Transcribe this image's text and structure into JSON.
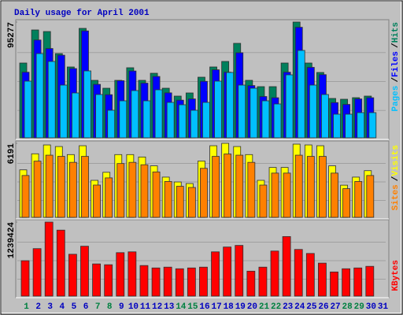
{
  "chart_data": [
    {
      "type": "bar",
      "title": "Daily usage for April 2001",
      "title_color": "#0000c0",
      "legend_separator": "/",
      "ylim": [
        0,
        95277
      ],
      "yticks": [
        95277
      ],
      "series": [
        {
          "name": "Hits",
          "color": "#00805c",
          "values": [
            61560,
            88776,
            87480,
            69336,
            58320,
            90072,
            47304,
            40824,
            47304,
            57672,
            47304,
            53136,
            40824,
            34344,
            36936,
            49896,
            58320,
            62856,
            77760,
            47304,
            42120,
            42120,
            61560,
            95277,
            61560,
            53784,
            32400,
            31752,
            33048,
            34344,
            null
          ]
        },
        {
          "name": "Files",
          "color": "#0000ff",
          "values": [
            54000,
            80500,
            73500,
            68000,
            57000,
            88000,
            44000,
            35500,
            47000,
            55000,
            45000,
            50500,
            37000,
            31000,
            32000,
            46500,
            56000,
            54000,
            70000,
            43000,
            34000,
            33000,
            54000,
            91000,
            58000,
            52000,
            29000,
            27500,
            32000,
            33000,
            null
          ]
        },
        {
          "name": "Pages",
          "color": "#00c0ff",
          "values": [
            46650,
            69336,
            62856,
            43416,
            36936,
            55080,
            35640,
            22680,
            30456,
            38880,
            30456,
            39528,
            29160,
            27216,
            22680,
            29160,
            46656,
            53784,
            43416,
            40824,
            30456,
            27864,
            51840,
            71928,
            43416,
            35640,
            19440,
            19440,
            20736,
            20736,
            null
          ]
        }
      ]
    },
    {
      "type": "bar",
      "legend_separator": "/",
      "ylim": [
        0,
        6191
      ],
      "yticks": [
        6191
      ],
      "series": [
        {
          "name": "Visits",
          "color": "#ffff00",
          "values": [
            3971,
            5317,
            6057,
            5923,
            5250,
            5990,
            3096,
            3769,
            5250,
            5250,
            5048,
            4307,
            3365,
            2961,
            2827,
            4711,
            5990,
            6191,
            5923,
            5250,
            3096,
            4173,
            4173,
            6124,
            6057,
            5990,
            4307,
            2692,
            3365,
            3904,
            null
          ]
        },
        {
          "name": "Sites",
          "color": "#ff8000",
          "values": [
            3500,
            4700,
            5200,
            5100,
            4600,
            5100,
            2700,
            3300,
            4500,
            4600,
            4400,
            3800,
            3000,
            2600,
            2500,
            4100,
            5100,
            5300,
            5200,
            4600,
            2700,
            3700,
            3700,
            5200,
            5100,
            5100,
            3700,
            2400,
            3000,
            3500,
            null
          ]
        }
      ]
    },
    {
      "type": "bar",
      "ylim": [
        0,
        1239424
      ],
      "yticks": [
        1239424
      ],
      "categories": [
        "1",
        "2",
        "3",
        "4",
        "5",
        "6",
        "7",
        "8",
        "9",
        "10",
        "11",
        "12",
        "13",
        "14",
        "15",
        "16",
        "17",
        "18",
        "19",
        "20",
        "21",
        "22",
        "23",
        "24",
        "25",
        "26",
        "27",
        "28",
        "29",
        "30",
        "31"
      ],
      "category_colors": [
        "#008040",
        "#0000c0",
        "#0000c0",
        "#0000c0",
        "#0000c0",
        "#0000c0",
        "#008040",
        "#008040",
        "#0000c0",
        "#0000c0",
        "#0000c0",
        "#0000c0",
        "#0000c0",
        "#008040",
        "#008040",
        "#0000c0",
        "#0000c0",
        "#0000c0",
        "#0000c0",
        "#0000c0",
        "#008040",
        "#008040",
        "#0000c0",
        "#0000c0",
        "#0000c0",
        "#0000c0",
        "#0000c0",
        "#008040",
        "#008040",
        "#0000c0",
        "#0000c0"
      ],
      "series": [
        {
          "name": "KBytes",
          "color": "#ff0000",
          "values": [
            592768,
            794848,
            1239424,
            1104704,
            700544,
            835264,
            538880,
            525408,
            727488,
            740960,
            511936,
            471520,
            484992,
            458048,
            471520,
            484992,
            740960,
            821792,
            848736,
            417632,
            484992,
            754432,
            996928,
            781376,
            714016,
            552352,
            404160,
            458048,
            471520,
            498464,
            null
          ]
        }
      ]
    }
  ]
}
